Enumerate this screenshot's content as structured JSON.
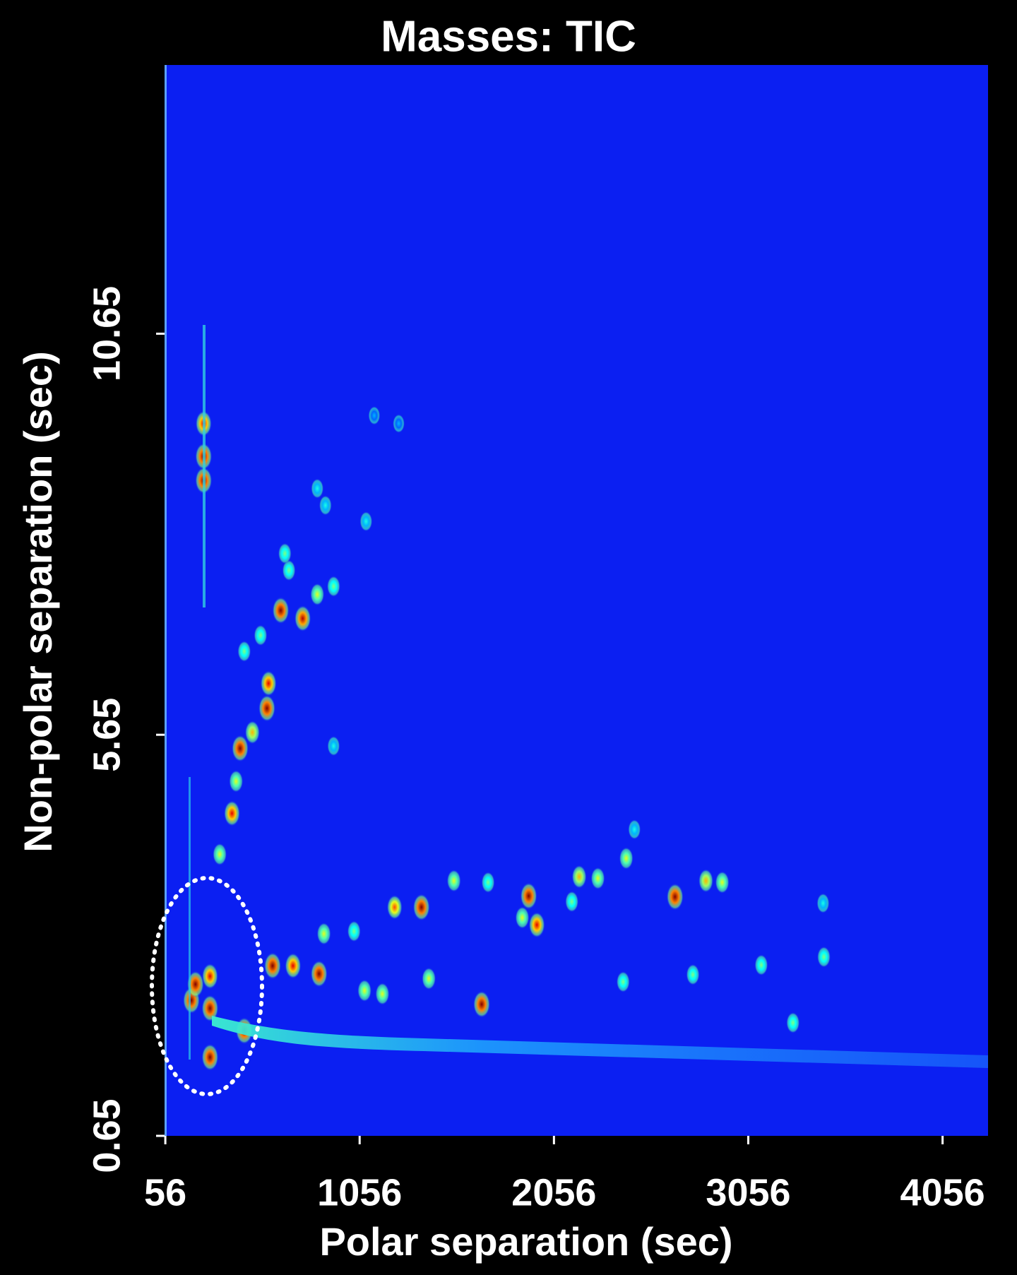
{
  "chart_data": {
    "type": "scatter",
    "title": "Masses:  TIC",
    "x_label": "Polar separation (sec)",
    "y_label": "Non-polar separation (sec)",
    "xlim": [
      52,
      4290
    ],
    "ylim": [
      0.65,
      14
    ],
    "xticks": [
      56,
      1056,
      2056,
      3056,
      4056
    ],
    "yticks": [
      0.65,
      5.65,
      10.65
    ],
    "x": [
      253,
      253,
      253,
      650,
      763,
      838,
      587,
      579,
      504,
      441,
      420,
      399,
      336,
      462,
      546,
      692,
      922,
      880,
      1089,
      838,
      1131,
      1257,
      671,
      608,
      713,
      847,
      872,
      1027,
      1081,
      1173,
      1236,
      1374,
      1412,
      1541,
      1684,
      1717,
      1893,
      1926,
      1968,
      2148,
      2186,
      2282,
      2412,
      2428,
      2679,
      2771,
      2838,
      2922,
      3123,
      3445,
      3286,
      3441,
      2470,
      922,
      190,
      286,
      286,
      462,
      286,
      211
    ],
    "values": [
      8.82,
      9.53,
      9.12,
      7.2,
      7.1,
      7.4,
      6.29,
      5.98,
      5.68,
      5.48,
      5.07,
      4.67,
      4.16,
      6.69,
      6.89,
      7.7,
      7.5,
      8.51,
      8.31,
      8.72,
      9.63,
      9.53,
      7.91,
      2.77,
      2.77,
      2.67,
      3.17,
      3.2,
      2.46,
      2.42,
      3.5,
      3.5,
      2.61,
      3.83,
      2.29,
      3.81,
      3.37,
      3.64,
      3.28,
      3.57,
      3.88,
      3.86,
      2.57,
      4.11,
      3.63,
      2.66,
      3.83,
      3.81,
      2.78,
      2.88,
      2.06,
      3.55,
      4.47,
      5.51,
      2.34,
      2.24,
      1.63,
      1.96,
      2.64,
      2.54
    ],
    "intensity": [
      1,
      0.9,
      1,
      1,
      0.95,
      0.6,
      0.9,
      1,
      0.7,
      1,
      0.6,
      0.9,
      0.6,
      0.5,
      0.5,
      0.5,
      0.5,
      0.4,
      0.4,
      0.4,
      0.3,
      0.3,
      0.5,
      1,
      0.9,
      1,
      0.6,
      0.5,
      0.6,
      0.6,
      0.8,
      1,
      0.6,
      0.6,
      1,
      0.5,
      0.6,
      1,
      0.9,
      0.5,
      0.7,
      0.6,
      0.5,
      0.6,
      1,
      0.5,
      0.7,
      0.6,
      0.5,
      0.5,
      0.5,
      0.4,
      0.4,
      0.4,
      1,
      1,
      1,
      1,
      0.9,
      1
    ],
    "background": "#0b1ff2"
  }
}
